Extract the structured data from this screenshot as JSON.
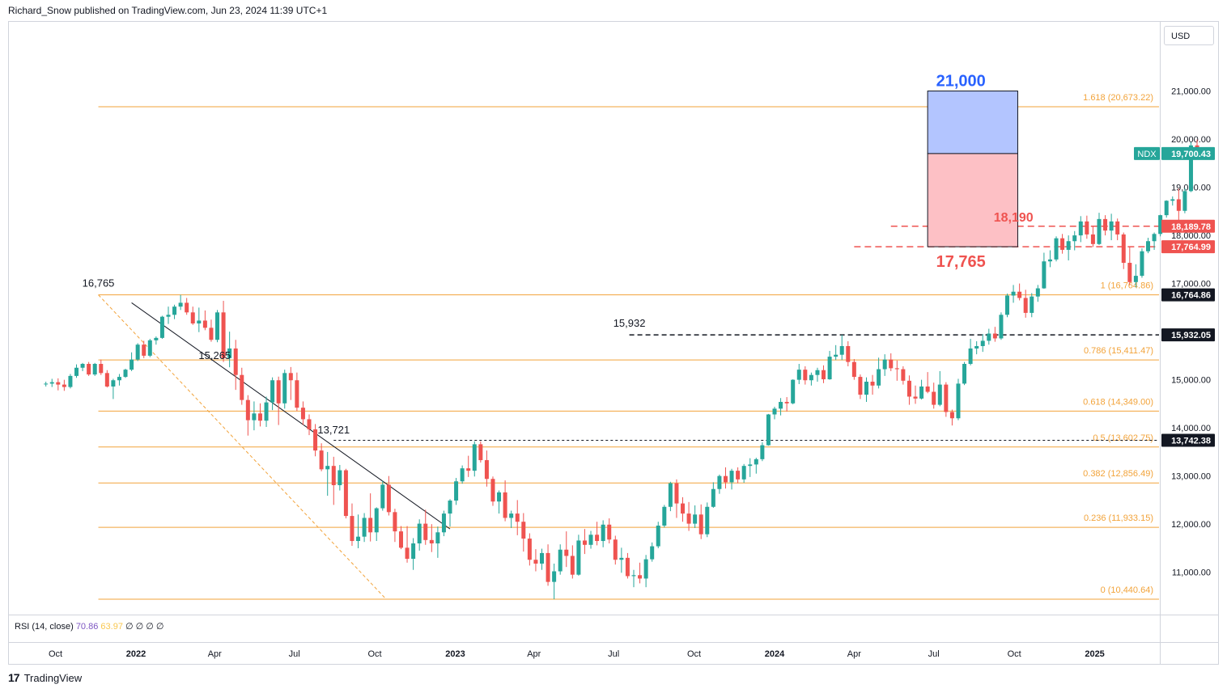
{
  "header": {
    "text": "Richard_Snow published on TradingView.com, Jun 23, 2024 11:39 UTC+1"
  },
  "currency": "USD",
  "footer": {
    "brand": "TradingView"
  },
  "rsi": {
    "label": "RSI (14, close)",
    "value1": "70.86",
    "value2": "63.97",
    "zeros": "∅ ∅ ∅ ∅"
  },
  "colors": {
    "up": "#26a69a",
    "down": "#ef5350",
    "fib": "#f2a33a",
    "blue_box": "#b3c5ff",
    "red_box": "#fdc0c5",
    "accent_blue": "#2962ff"
  },
  "chart_data": {
    "type": "candlestick",
    "symbol": "NDX",
    "ylim": [
      10200,
      21700
    ],
    "y_ticks": [
      "11,000.00",
      "12,000.00",
      "13,000.00",
      "14,000.00",
      "15,000.00",
      "16,000.00",
      "17,000.00",
      "18,000.00",
      "19,000.00",
      "20,000.00",
      "21,000.00"
    ],
    "y_tick_values": [
      11000,
      12000,
      13000,
      14000,
      15000,
      16000,
      17000,
      18000,
      19000,
      20000,
      21000
    ],
    "x_labels": [
      {
        "label": "Oct",
        "date": "2021-10"
      },
      {
        "label": "2022",
        "date": "2022-01"
      },
      {
        "label": "Apr",
        "date": "2022-04"
      },
      {
        "label": "Jul",
        "date": "2022-07"
      },
      {
        "label": "Oct",
        "date": "2022-10"
      },
      {
        "label": "2023",
        "date": "2023-01"
      },
      {
        "label": "Apr",
        "date": "2023-04"
      },
      {
        "label": "Jul",
        "date": "2023-07"
      },
      {
        "label": "Oct",
        "date": "2023-10"
      },
      {
        "label": "2024",
        "date": "2024-01"
      },
      {
        "label": "Apr",
        "date": "2024-04"
      },
      {
        "label": "Jul",
        "date": "2024-07"
      },
      {
        "label": "Oct",
        "date": "2024-10"
      },
      {
        "label": "2025",
        "date": "2025-01"
      }
    ],
    "fib_levels": [
      {
        "label": "1.618 (20,673.22)",
        "value": 20673.22
      },
      {
        "label": "1 (16,764.86)",
        "value": 16764.86
      },
      {
        "label": "0.786 (15,411.47)",
        "value": 15411.47
      },
      {
        "label": "0.618 (14,349.00)",
        "value": 14349.0
      },
      {
        "label": "0.5 (13,602.75)",
        "value": 13602.75
      },
      {
        "label": "0.382 (12,856.49)",
        "value": 12856.49
      },
      {
        "label": "0.236 (11,933.15)",
        "value": 11933.15
      },
      {
        "label": "0 (10,440.64)",
        "value": 10440.64
      }
    ],
    "price_badges": [
      {
        "label": "NDX",
        "value": "19,700.43",
        "y": 19700.43,
        "color": "#26a69a"
      },
      {
        "label": "",
        "value": "18,189.78",
        "y": 18189.78,
        "color": "#ef5350"
      },
      {
        "label": "",
        "value": "17,764.99",
        "y": 17764.99,
        "color": "#ef5350"
      },
      {
        "label": "",
        "value": "16,764.86",
        "y": 16764.86,
        "color": "#131722"
      },
      {
        "label": "",
        "value": "15,932.05",
        "y": 15932.05,
        "color": "#131722"
      },
      {
        "label": "",
        "value": "13,742.38",
        "y": 13742.38,
        "color": "#131722"
      }
    ],
    "annotations": [
      {
        "text": "16,765",
        "date": "2021-11-19",
        "y": 16765
      },
      {
        "text": "15,265",
        "date": "2022-04-01",
        "y": 15265
      },
      {
        "text": "13,721",
        "date": "2022-08-15",
        "y": 13721
      },
      {
        "text": "15,932",
        "date": "2023-07-19",
        "y": 15932
      },
      {
        "text": "21,000",
        "date": "2024-08-01",
        "y": 21000
      },
      {
        "text": "18,190",
        "date": "2024-08-01",
        "y": 18190
      },
      {
        "text": "17,765",
        "date": "2024-08-01",
        "y": 17765
      }
    ],
    "candles": [
      [
        14920,
        14960,
        14860,
        14920
      ],
      [
        14920,
        15020,
        14850,
        14950
      ],
      [
        14950,
        15030,
        14780,
        14900
      ],
      [
        14900,
        15000,
        14770,
        14850
      ],
      [
        14850,
        15120,
        14820,
        15080
      ],
      [
        15080,
        15320,
        15040,
        15250
      ],
      [
        15250,
        15350,
        15180,
        15330
      ],
      [
        15330,
        15370,
        15080,
        15110
      ],
      [
        15110,
        15350,
        15080,
        15330
      ],
      [
        15330,
        15420,
        15100,
        15140
      ],
      [
        15140,
        15200,
        14840,
        14860
      ],
      [
        14860,
        15020,
        14600,
        14990
      ],
      [
        14990,
        15120,
        14880,
        15060
      ],
      [
        15060,
        15230,
        15040,
        15210
      ],
      [
        15210,
        15570,
        15180,
        15420
      ],
      [
        15420,
        15760,
        15390,
        15730
      ],
      [
        15730,
        15810,
        15450,
        15500
      ],
      [
        15500,
        15850,
        15470,
        15820
      ],
      [
        15820,
        15900,
        15730,
        15870
      ],
      [
        15870,
        16330,
        15850,
        16310
      ],
      [
        16310,
        16520,
        16160,
        16350
      ],
      [
        16350,
        16560,
        16260,
        16520
      ],
      [
        16520,
        16765,
        16450,
        16600
      ],
      [
        16600,
        16700,
        16350,
        16400
      ],
      [
        16400,
        16520,
        16140,
        16170
      ],
      [
        16170,
        16500,
        15990,
        16230
      ],
      [
        16230,
        16440,
        16030,
        16080
      ],
      [
        16080,
        16250,
        15790,
        15830
      ],
      [
        15830,
        16450,
        15780,
        16400
      ],
      [
        16400,
        16640,
        15370,
        15450
      ],
      [
        15450,
        16000,
        15260,
        15650
      ],
      [
        15650,
        15830,
        14790,
        15100
      ],
      [
        15100,
        15250,
        14480,
        14580
      ],
      [
        14580,
        14680,
        13840,
        14160
      ],
      [
        14160,
        14550,
        13950,
        14300
      ],
      [
        14300,
        14510,
        14030,
        14150
      ],
      [
        14150,
        14650,
        14020,
        14530
      ],
      [
        14530,
        15050,
        14370,
        14990
      ],
      [
        14990,
        15065,
        14060,
        14510
      ],
      [
        14510,
        15210,
        14400,
        15140
      ],
      [
        15140,
        15265,
        14580,
        14990
      ],
      [
        14990,
        15150,
        14350,
        14420
      ],
      [
        14420,
        14550,
        14060,
        14180
      ],
      [
        14180,
        14280,
        13850,
        13970
      ],
      [
        13970,
        14080,
        13410,
        13530
      ],
      [
        13530,
        13680,
        13100,
        13140
      ],
      [
        13140,
        13500,
        12590,
        13210
      ],
      [
        13210,
        13400,
        12400,
        12810
      ],
      [
        12810,
        13230,
        12700,
        13120
      ],
      [
        13120,
        13150,
        12120,
        12170
      ],
      [
        12170,
        12430,
        11550,
        11650
      ],
      [
        11650,
        12200,
        11500,
        11740
      ],
      [
        11740,
        12230,
        11630,
        12130
      ],
      [
        12130,
        12640,
        11640,
        11830
      ],
      [
        11830,
        12350,
        11650,
        12330
      ],
      [
        12330,
        12900,
        12280,
        12820
      ],
      [
        12820,
        13000,
        12180,
        12250
      ],
      [
        12250,
        12320,
        11630,
        11850
      ],
      [
        11850,
        11960,
        11480,
        11510
      ],
      [
        11510,
        11960,
        11200,
        11280
      ],
      [
        11280,
        11710,
        11050,
        11600
      ],
      [
        11600,
        12100,
        11450,
        12010
      ],
      [
        12010,
        12300,
        11570,
        11670
      ],
      [
        11670,
        12000,
        11420,
        11600
      ],
      [
        11600,
        11950,
        11300,
        11830
      ],
      [
        11830,
        12280,
        11750,
        12220
      ],
      [
        12220,
        12520,
        11950,
        12490
      ],
      [
        12490,
        12960,
        12400,
        12890
      ],
      [
        12890,
        13220,
        12840,
        13160
      ],
      [
        13160,
        13421,
        12980,
        13110
      ],
      [
        13110,
        13721,
        12990,
        13660
      ],
      [
        13660,
        13720,
        13280,
        13330
      ],
      [
        13330,
        13530,
        12780,
        12940
      ],
      [
        12940,
        12990,
        12380,
        12470
      ],
      [
        12470,
        12700,
        12220,
        12660
      ],
      [
        12660,
        12910,
        12060,
        12130
      ],
      [
        12130,
        12280,
        11920,
        12220
      ],
      [
        12220,
        12500,
        11770,
        12050
      ],
      [
        12050,
        12230,
        11430,
        11700
      ],
      [
        11700,
        11810,
        11140,
        11260
      ],
      [
        11260,
        11480,
        11020,
        11180
      ],
      [
        11180,
        11490,
        11050,
        11400
      ],
      [
        11400,
        11580,
        10720,
        10800
      ],
      [
        10800,
        11180,
        10440,
        11020
      ],
      [
        11020,
        11580,
        10950,
        11470
      ],
      [
        11470,
        11850,
        11110,
        11340
      ],
      [
        11340,
        11560,
        10870,
        10950
      ],
      [
        10950,
        11780,
        10930,
        11660
      ],
      [
        11660,
        11900,
        11380,
        11570
      ],
      [
        11570,
        11860,
        11490,
        11780
      ],
      [
        11780,
        12050,
        11560,
        11650
      ],
      [
        11650,
        12080,
        11520,
        11990
      ],
      [
        11990,
        12120,
        11600,
        11680
      ],
      [
        11680,
        11760,
        11160,
        11260
      ],
      [
        11260,
        11510,
        10990,
        11300
      ],
      [
        11300,
        11400,
        10870,
        10920
      ],
      [
        10920,
        11050,
        10690,
        10940
      ],
      [
        10940,
        11200,
        10770,
        10870
      ],
      [
        10870,
        11360,
        10690,
        11270
      ],
      [
        11270,
        11620,
        11220,
        11540
      ],
      [
        11540,
        12050,
        11500,
        11970
      ],
      [
        11970,
        12400,
        11930,
        12360
      ],
      [
        12360,
        12880,
        12270,
        12850
      ],
      [
        12850,
        12930,
        12130,
        12430
      ],
      [
        12430,
        12560,
        12050,
        12220
      ],
      [
        12220,
        12460,
        11860,
        12010
      ],
      [
        12010,
        12390,
        11920,
        12200
      ],
      [
        12200,
        12410,
        11690,
        11790
      ],
      [
        11790,
        12450,
        11730,
        12360
      ],
      [
        12360,
        12870,
        12340,
        12730
      ],
      [
        12730,
        13030,
        12630,
        13000
      ],
      [
        13000,
        13180,
        12740,
        12870
      ],
      [
        12870,
        13150,
        12720,
        13110
      ],
      [
        13110,
        13180,
        12850,
        12930
      ],
      [
        12930,
        13250,
        12860,
        13210
      ],
      [
        13210,
        13370,
        12980,
        13240
      ],
      [
        13240,
        13380,
        13050,
        13350
      ],
      [
        13350,
        13700,
        13310,
        13640
      ],
      [
        13640,
        14290,
        13630,
        14280
      ],
      [
        14280,
        14440,
        14180,
        14400
      ],
      [
        14400,
        14620,
        14260,
        14540
      ],
      [
        14540,
        14640,
        14340,
        14510
      ],
      [
        14510,
        15010,
        14490,
        15000
      ],
      [
        15000,
        15330,
        14910,
        15210
      ],
      [
        15210,
        15280,
        14900,
        14990
      ],
      [
        14990,
        15150,
        14880,
        15100
      ],
      [
        15100,
        15250,
        14960,
        15200
      ],
      [
        15200,
        15300,
        14930,
        15010
      ],
      [
        15010,
        15600,
        15000,
        15480
      ],
      [
        15480,
        15720,
        15410,
        15520
      ],
      [
        15520,
        15932,
        15410,
        15700
      ],
      [
        15700,
        15800,
        15280,
        15370
      ],
      [
        15370,
        15430,
        15000,
        15060
      ],
      [
        15060,
        15110,
        14600,
        14690
      ],
      [
        14690,
        15050,
        14540,
        14960
      ],
      [
        14960,
        15100,
        14690,
        14880
      ],
      [
        14880,
        15460,
        14820,
        15220
      ],
      [
        15220,
        15530,
        15080,
        15420
      ],
      [
        15420,
        15550,
        15180,
        15240
      ],
      [
        15240,
        15400,
        14980,
        15220
      ],
      [
        15220,
        15280,
        14900,
        14980
      ],
      [
        14980,
        15090,
        14480,
        14650
      ],
      [
        14650,
        14880,
        14500,
        14610
      ],
      [
        14610,
        15000,
        14590,
        14860
      ],
      [
        14860,
        15160,
        14720,
        14750
      ],
      [
        14750,
        14940,
        14400,
        14480
      ],
      [
        14480,
        15180,
        14450,
        14900
      ],
      [
        14900,
        14950,
        14230,
        14330
      ],
      [
        14330,
        14380,
        14050,
        14200
      ],
      [
        14200,
        15020,
        14160,
        14920
      ],
      [
        14920,
        15370,
        14890,
        15330
      ],
      [
        15330,
        15850,
        15300,
        15650
      ],
      [
        15650,
        15800,
        15530,
        15700
      ],
      [
        15700,
        15950,
        15580,
        15810
      ],
      [
        15810,
        16060,
        15730,
        15960
      ],
      [
        15960,
        16100,
        15790,
        15860
      ],
      [
        15860,
        16400,
        15830,
        16350
      ],
      [
        16350,
        16790,
        16300,
        16750
      ],
      [
        16750,
        16970,
        16600,
        16830
      ],
      [
        16830,
        17000,
        16650,
        16700
      ],
      [
        16700,
        16870,
        16290,
        16390
      ],
      [
        16390,
        16800,
        16300,
        16730
      ],
      [
        16730,
        16970,
        16620,
        16900
      ],
      [
        16900,
        17640,
        16890,
        17460
      ],
      [
        17460,
        17690,
        17340,
        17500
      ],
      [
        17500,
        17980,
        17460,
        17940
      ],
      [
        17940,
        18030,
        17620,
        17700
      ],
      [
        17700,
        18000,
        17480,
        17880
      ],
      [
        17880,
        18090,
        17690,
        18000
      ],
      [
        18000,
        18400,
        17860,
        18290
      ],
      [
        18290,
        18410,
        17930,
        18020
      ],
      [
        18020,
        18180,
        17760,
        17820
      ],
      [
        17820,
        18470,
        17800,
        18340
      ],
      [
        18340,
        18420,
        18000,
        18100
      ],
      [
        18100,
        18450,
        17900,
        18290
      ],
      [
        18290,
        18350,
        17900,
        18020
      ],
      [
        18020,
        18060,
        17300,
        17430
      ],
      [
        17430,
        17760,
        16970,
        17030
      ],
      [
        17030,
        17400,
        16920,
        17160
      ],
      [
        17160,
        17730,
        17120,
        17670
      ],
      [
        17670,
        17950,
        17630,
        17880
      ],
      [
        17880,
        18060,
        17700,
        18030
      ],
      [
        18030,
        18430,
        17980,
        18420
      ],
      [
        18420,
        18730,
        18370,
        18720
      ],
      [
        18720,
        18810,
        18620,
        18750
      ],
      [
        18750,
        18970,
        18250,
        18510
      ],
      [
        18510,
        18980,
        18460,
        18920
      ],
      [
        18920,
        19940,
        18900,
        19870
      ],
      [
        19870,
        19990,
        19650,
        19700
      ]
    ]
  }
}
